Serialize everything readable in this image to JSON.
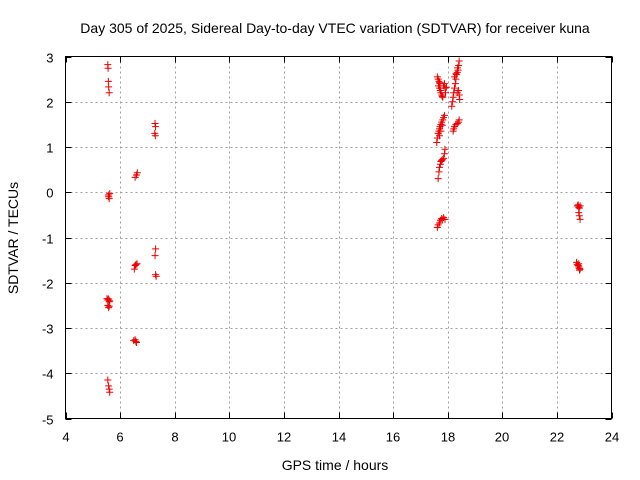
{
  "chart_data": {
    "type": "scatter",
    "title": "Day 305 of 2025, Sidereal Day-to-day VTEC variation (SDTVAR) for receiver kuna",
    "xlabel": "GPS time / hours",
    "ylabel": "SDTVAR / TECUs",
    "xlim": [
      4,
      24
    ],
    "ylim": [
      -5,
      3
    ],
    "xticks": [
      4,
      6,
      8,
      10,
      12,
      14,
      16,
      18,
      20,
      22,
      24
    ],
    "yticks": [
      -5,
      -4,
      -3,
      -2,
      -1,
      0,
      1,
      2,
      3
    ],
    "grid": true,
    "marker": "+",
    "color": "#ee0000",
    "series": [
      {
        "name": "SDTVAR",
        "points": [
          [
            5.55,
            2.82
          ],
          [
            5.56,
            2.74
          ],
          [
            5.57,
            2.45
          ],
          [
            5.58,
            2.33
          ],
          [
            5.6,
            2.2
          ],
          [
            5.57,
            -0.06
          ],
          [
            5.58,
            -0.1
          ],
          [
            5.6,
            -0.14
          ],
          [
            5.62,
            -0.03
          ],
          [
            5.52,
            -2.35
          ],
          [
            5.55,
            -2.38
          ],
          [
            5.58,
            -2.36
          ],
          [
            5.6,
            -2.42
          ],
          [
            5.62,
            -2.4
          ],
          [
            5.55,
            -2.5
          ],
          [
            5.58,
            -2.55
          ],
          [
            5.6,
            -2.52
          ],
          [
            5.55,
            -4.15
          ],
          [
            5.58,
            -4.28
          ],
          [
            5.6,
            -4.35
          ],
          [
            5.62,
            -4.42
          ],
          [
            6.55,
            0.33
          ],
          [
            6.6,
            0.38
          ],
          [
            6.63,
            0.43
          ],
          [
            6.52,
            -1.7
          ],
          [
            6.55,
            -1.62
          ],
          [
            6.58,
            -1.6
          ],
          [
            6.62,
            -1.58
          ],
          [
            6.5,
            -3.28
          ],
          [
            6.55,
            -3.26
          ],
          [
            6.58,
            -3.3
          ],
          [
            6.6,
            -3.32
          ],
          [
            7.28,
            1.52
          ],
          [
            7.3,
            1.45
          ],
          [
            7.27,
            1.3
          ],
          [
            7.29,
            1.25
          ],
          [
            7.3,
            -1.25
          ],
          [
            7.28,
            -1.4
          ],
          [
            7.3,
            -1.82
          ],
          [
            7.32,
            -1.86
          ],
          [
            17.62,
            2.55
          ],
          [
            17.65,
            2.5
          ],
          [
            17.68,
            2.45
          ],
          [
            17.7,
            2.42
          ],
          [
            17.72,
            2.4
          ],
          [
            17.66,
            2.35
          ],
          [
            17.7,
            2.3
          ],
          [
            17.73,
            2.25
          ],
          [
            17.75,
            2.2
          ],
          [
            17.78,
            2.15
          ],
          [
            17.8,
            2.12
          ],
          [
            17.82,
            2.1
          ],
          [
            17.85,
            2.35
          ],
          [
            17.88,
            2.4
          ],
          [
            17.9,
            2.3
          ],
          [
            17.92,
            2.2
          ],
          [
            17.95,
            2.32
          ],
          [
            17.6,
            1.1
          ],
          [
            17.62,
            1.2
          ],
          [
            17.65,
            1.3
          ],
          [
            17.68,
            1.35
          ],
          [
            17.7,
            1.4
          ],
          [
            17.72,
            1.45
          ],
          [
            17.75,
            1.5
          ],
          [
            17.78,
            1.55
          ],
          [
            17.8,
            1.48
          ],
          [
            17.82,
            1.6
          ],
          [
            17.85,
            1.65
          ],
          [
            17.88,
            1.7
          ],
          [
            17.7,
            1.25
          ],
          [
            17.75,
            1.35
          ],
          [
            17.65,
            0.3
          ],
          [
            17.68,
            0.45
          ],
          [
            17.7,
            0.55
          ],
          [
            17.73,
            0.62
          ],
          [
            17.75,
            0.68
          ],
          [
            17.78,
            0.7
          ],
          [
            17.8,
            0.72
          ],
          [
            17.85,
            0.75
          ],
          [
            17.88,
            0.85
          ],
          [
            17.9,
            0.95
          ],
          [
            17.62,
            -0.78
          ],
          [
            17.65,
            -0.72
          ],
          [
            17.7,
            -0.68
          ],
          [
            17.73,
            -0.62
          ],
          [
            17.78,
            -0.58
          ],
          [
            17.8,
            -0.6
          ],
          [
            17.85,
            -0.56
          ],
          [
            17.9,
            -0.6
          ],
          [
            18.15,
            1.9
          ],
          [
            18.18,
            2.0
          ],
          [
            18.2,
            2.1
          ],
          [
            18.22,
            2.2
          ],
          [
            18.25,
            2.3
          ],
          [
            18.28,
            2.4
          ],
          [
            18.3,
            2.5
          ],
          [
            18.32,
            2.6
          ],
          [
            18.35,
            2.65
          ],
          [
            18.38,
            2.7
          ],
          [
            18.4,
            2.8
          ],
          [
            18.42,
            2.9
          ],
          [
            18.25,
            2.55
          ],
          [
            18.3,
            2.62
          ],
          [
            18.36,
            2.75
          ],
          [
            18.4,
            2.25
          ],
          [
            18.42,
            2.15
          ],
          [
            18.44,
            2.05
          ],
          [
            18.35,
            2.2
          ],
          [
            18.2,
            1.35
          ],
          [
            18.22,
            1.4
          ],
          [
            18.25,
            1.45
          ],
          [
            18.3,
            1.5
          ],
          [
            18.35,
            1.52
          ],
          [
            18.4,
            1.55
          ],
          [
            18.42,
            1.6
          ],
          [
            22.75,
            -0.3
          ],
          [
            22.78,
            -0.28
          ],
          [
            22.8,
            -0.33
          ],
          [
            22.82,
            -0.35
          ],
          [
            22.85,
            -0.3
          ],
          [
            22.8,
            -0.45
          ],
          [
            22.82,
            -0.52
          ],
          [
            22.85,
            -0.6
          ],
          [
            22.72,
            -1.55
          ],
          [
            22.75,
            -1.6
          ],
          [
            22.78,
            -1.62
          ],
          [
            22.8,
            -1.65
          ],
          [
            22.82,
            -1.68
          ],
          [
            22.85,
            -1.7
          ],
          [
            22.8,
            -1.58
          ],
          [
            22.83,
            -1.72
          ]
        ]
      }
    ]
  }
}
